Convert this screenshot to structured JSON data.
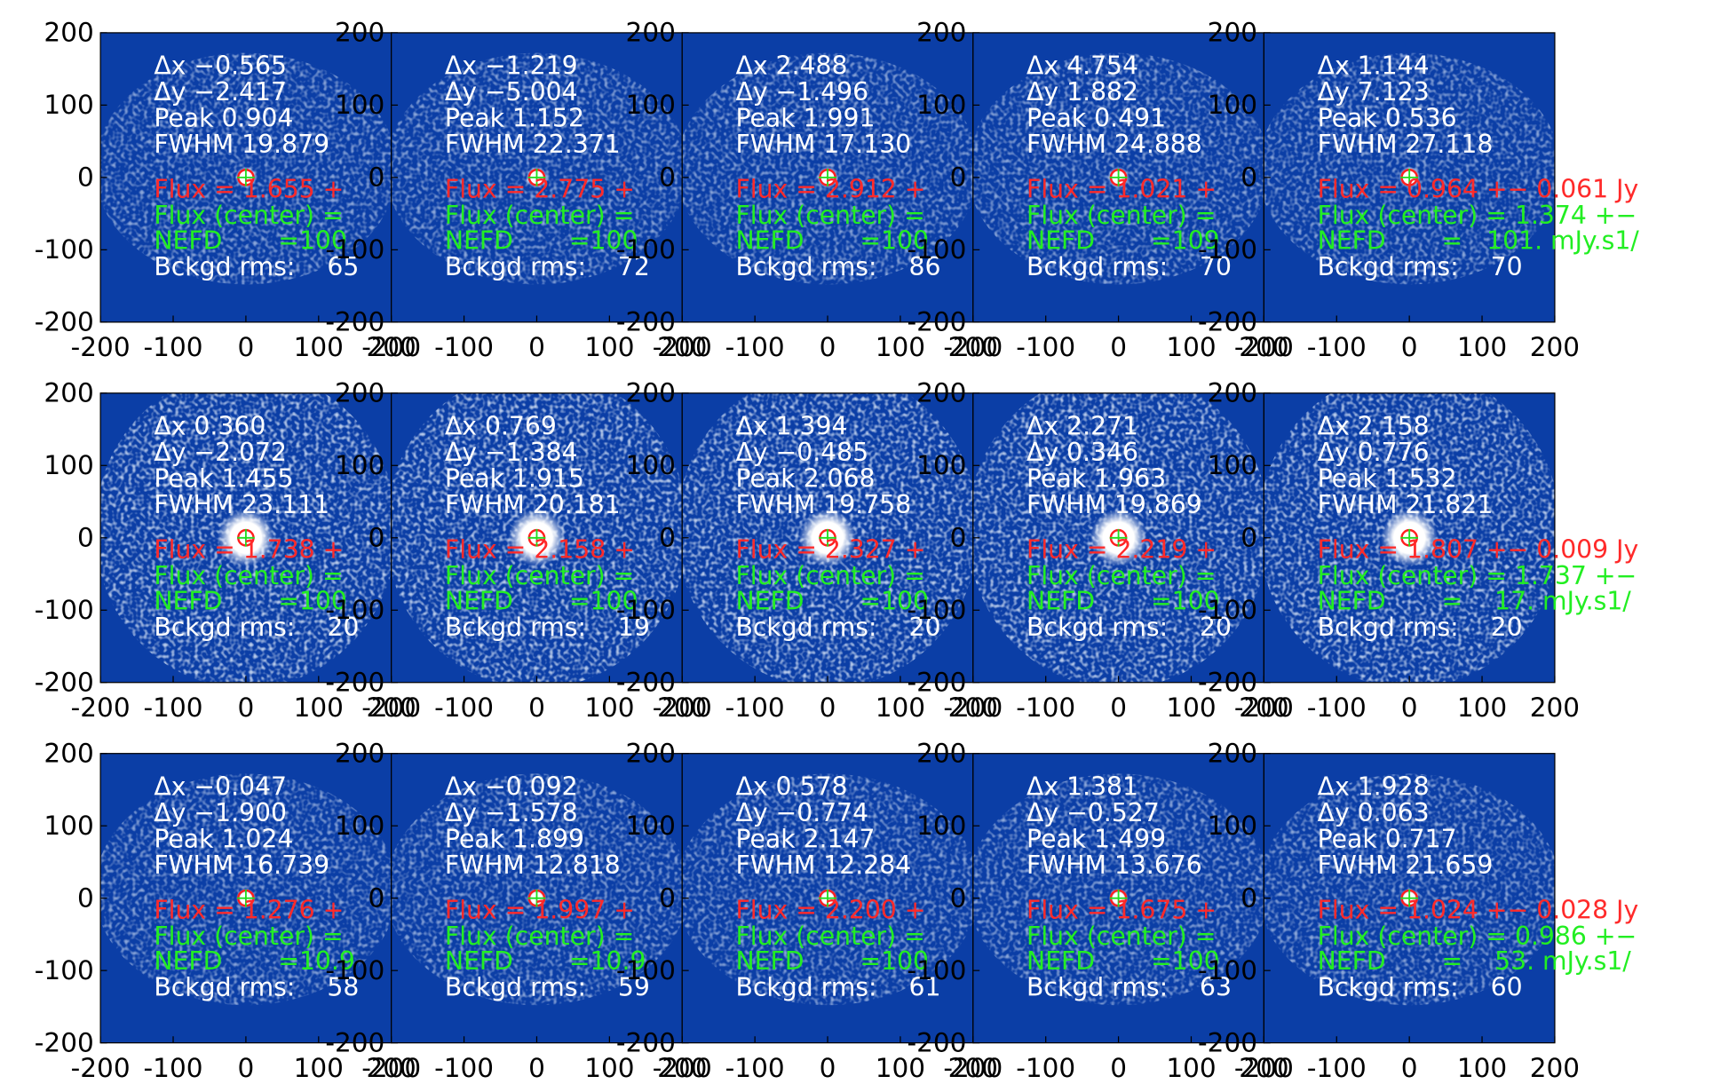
{
  "axes": {
    "xlim": [
      -200,
      200
    ],
    "ylim": [
      -200,
      200
    ],
    "xticks": [
      -200,
      -100,
      0,
      100,
      200
    ],
    "yticks": [
      -200,
      -100,
      0,
      100,
      200
    ]
  },
  "panels": [
    {
      "lines": [
        "Δx −0.565",
        "Δy −2.417",
        "Peak 0.904",
        "FWHM 19.879",
        "Flux = 1.655 +",
        "Flux (center) =",
        "NEFD       =100",
        "Bckgd rms:    65"
      ]
    },
    {
      "lines": [
        "Δx −1.219",
        "Δy −5.004",
        "Peak 1.152",
        "FWHM 22.371",
        "Flux = 2.775 +",
        "Flux (center) =",
        "NEFD       =100",
        "Bckgd rms:    72"
      ]
    },
    {
      "lines": [
        "Δx 2.488",
        "Δy −1.496",
        "Peak 1.991",
        "FWHM 17.130",
        "Flux = 2.912 +",
        "Flux (center) =",
        "NEFD       =100",
        "Bckgd rms:    86"
      ]
    },
    {
      "lines": [
        "Δx 4.754",
        "Δy 1.882",
        "Peak 0.491",
        "FWHM 24.888",
        "Flux = 1.021 +",
        "Flux (center) =",
        "NEFD       =109",
        "Bckgd rms:    70"
      ]
    },
    {
      "lines": [
        "Δx 1.144",
        "Δy 7.123",
        "Peak 0.536",
        "FWHM 27.118",
        "Flux = 0.964 +− 0.061 Jy",
        "Flux (center) = 1.374 +−",
        "NEFD       =   101. mJy.s1/",
        "Bckgd rms:    70"
      ]
    },
    {
      "lines": [
        "Δx 0.360",
        "Δy −2.072",
        "Peak 1.455",
        "FWHM 23.111",
        "Flux = 1.738 +",
        "Flux (center) =",
        "NEFD       =100",
        "Bckgd rms:    20"
      ]
    },
    {
      "lines": [
        "Δx 0.769",
        "Δy −1.384",
        "Peak 1.915",
        "FWHM 20.181",
        "Flux = 2.158 +",
        "Flux (center) =",
        "NEFD       =100",
        "Bckgd rms:    19"
      ]
    },
    {
      "lines": [
        "Δx 1.394",
        "Δy −0.485",
        "Peak 2.068",
        "FWHM 19.758",
        "Flux = 2.327 +",
        "Flux (center) =",
        "NEFD       =100",
        "Bckgd rms:    20"
      ]
    },
    {
      "lines": [
        "Δx 2.271",
        "Δy 0.346",
        "Peak 1.963",
        "FWHM 19.869",
        "Flux = 2.219 +",
        "Flux (center) =",
        "NEFD       =100",
        "Bckgd rms:    20"
      ]
    },
    {
      "lines": [
        "Δx 2.158",
        "Δy 0.776",
        "Peak 1.532",
        "FWHM 21.821",
        "Flux = 1.807 +− 0.009 Jy",
        "Flux (center) = 1.737 +−",
        "NEFD       =    17. mJy.s1/",
        "Bckgd rms:    20"
      ]
    },
    {
      "lines": [
        "Δx −0.047",
        "Δy −1.900",
        "Peak 1.024",
        "FWHM 16.739",
        "Flux = 1.276 +",
        "Flux (center) =",
        "NEFD       =10.9",
        "Bckgd rms:    58"
      ]
    },
    {
      "lines": [
        "Δx −0.092",
        "Δy −1.578",
        "Peak 1.899",
        "FWHM 12.818",
        "Flux = 1.997 +",
        "Flux (center) =",
        "NEFD       =10.9",
        "Bckgd rms:    59"
      ]
    },
    {
      "lines": [
        "Δx 0.578",
        "Δy −0.774",
        "Peak 2.147",
        "FWHM 12.284",
        "Flux = 2.200 +",
        "Flux (center) =",
        "NEFD       =100",
        "Bckgd rms:    61"
      ]
    },
    {
      "lines": [
        "Δx 1.381",
        "Δy −0.527",
        "Peak 1.499",
        "FWHM 13.676",
        "Flux = 1.675 +",
        "Flux (center) =",
        "NEFD       =100",
        "Bckgd rms:    63"
      ]
    },
    {
      "lines": [
        "Δx 1.928",
        "Δy 0.063",
        "Peak 0.717",
        "FWHM 21.659",
        "Flux = 1.024 +− 0.028 Jy",
        "Flux (center) = 0.986 +−",
        "NEFD       =    53. mJy.s1/",
        "Bckgd rms:    60"
      ]
    }
  ]
}
